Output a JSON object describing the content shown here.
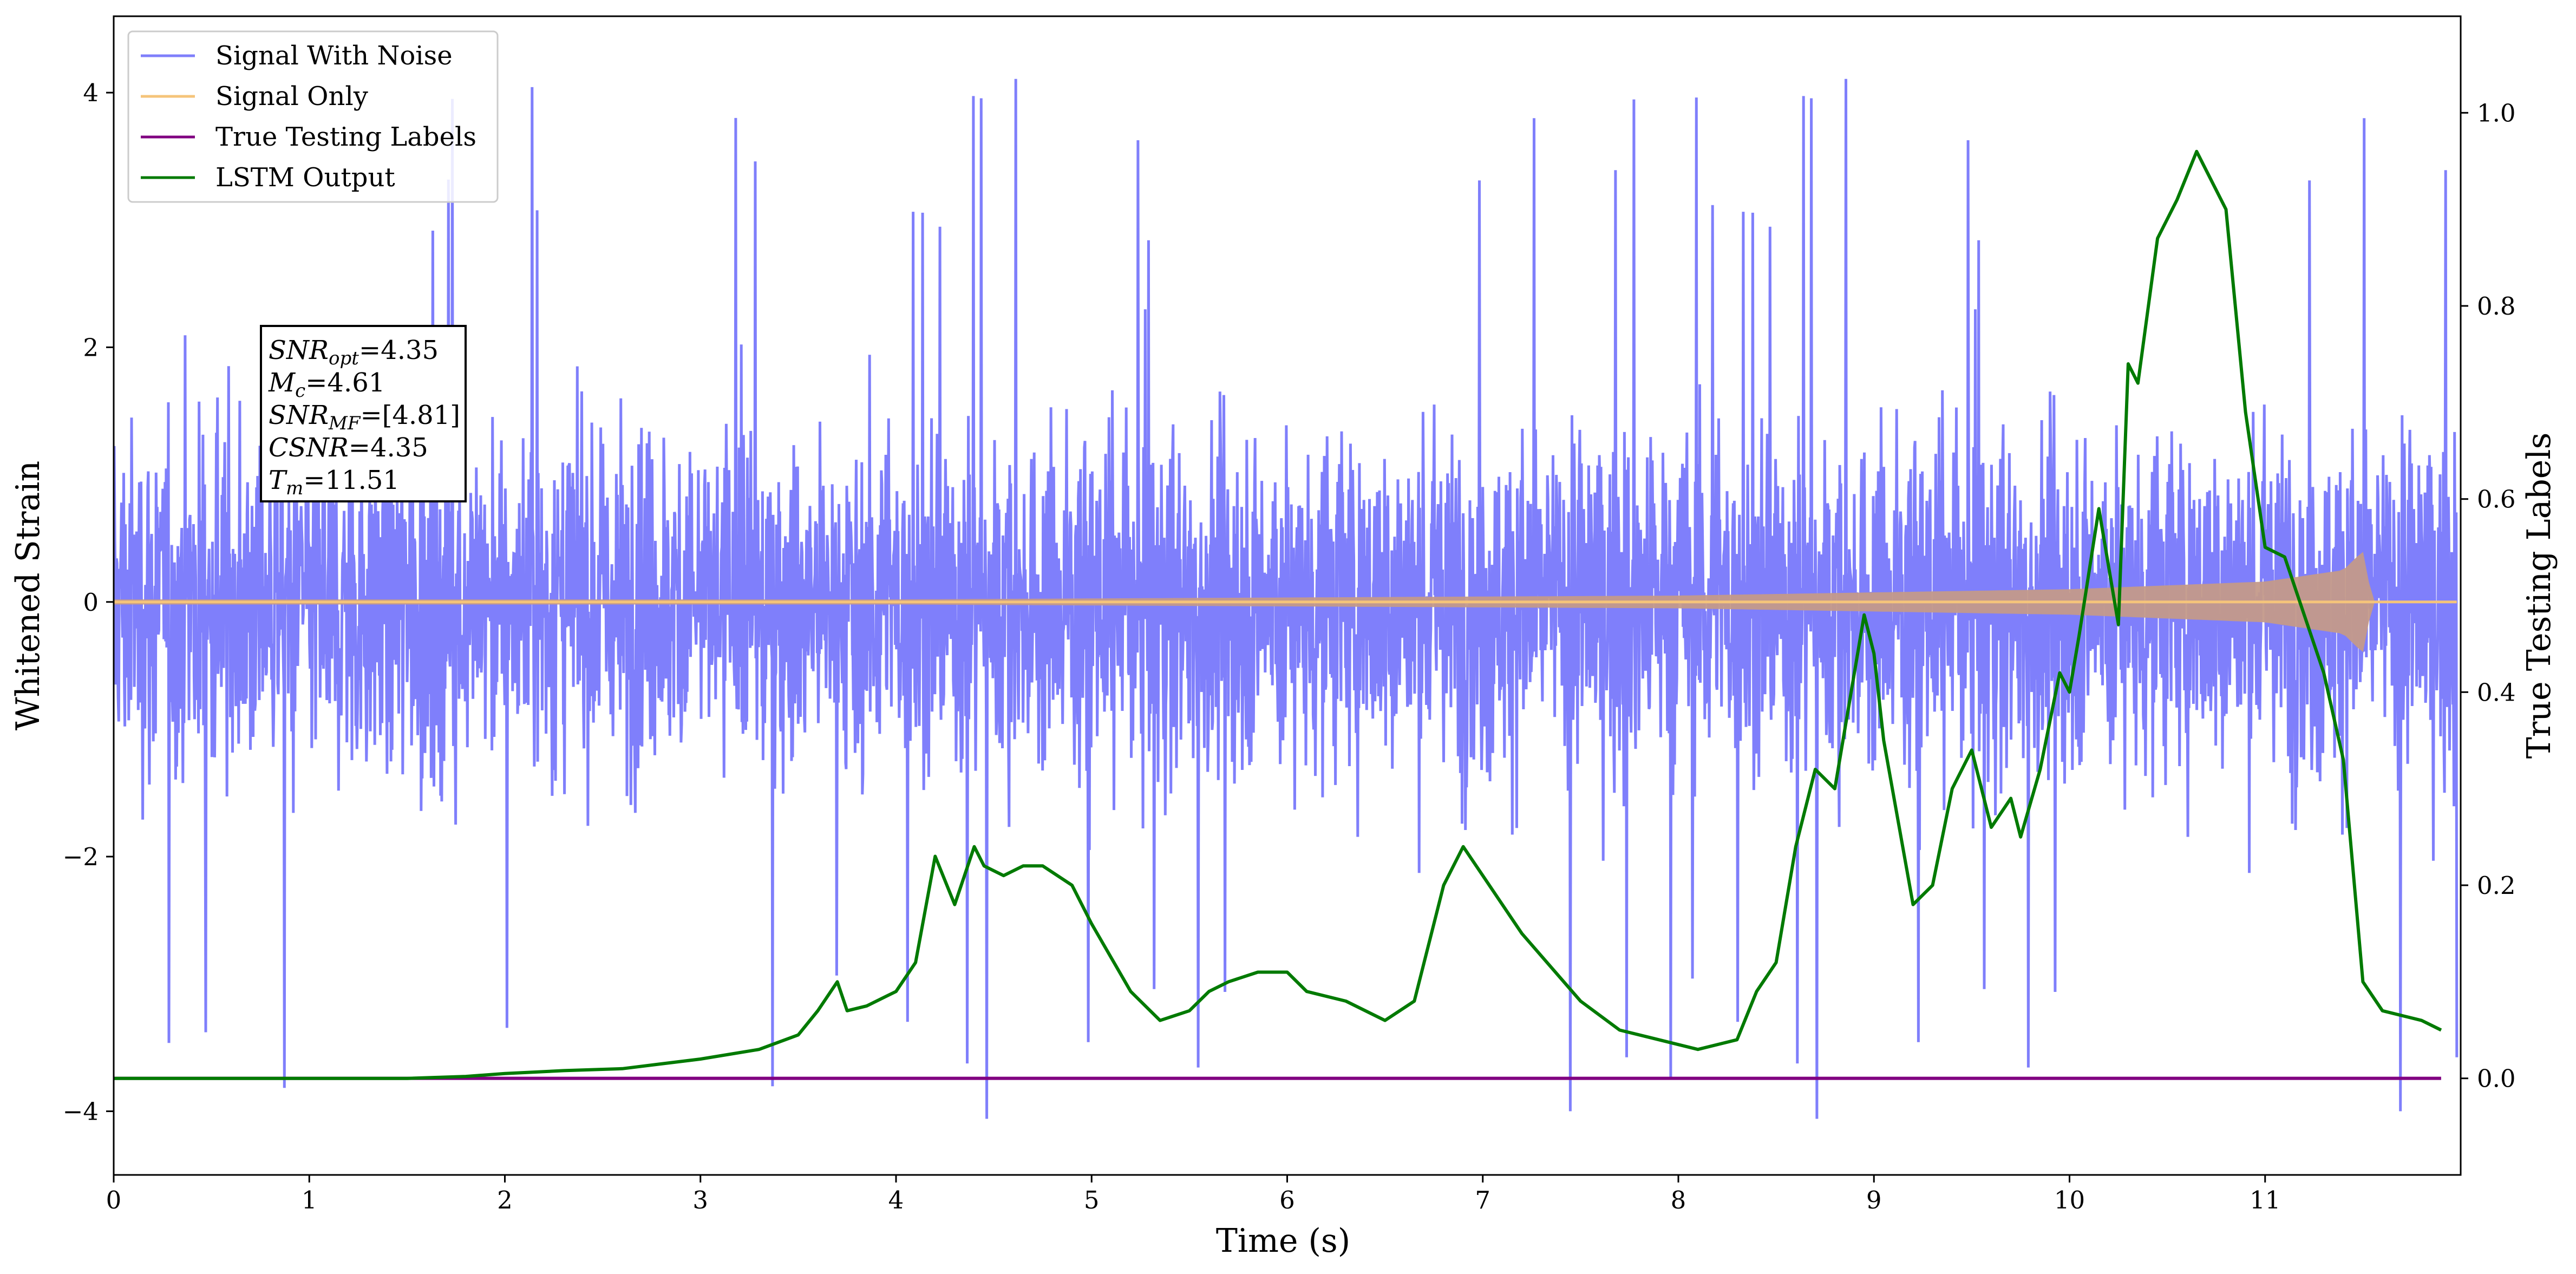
{
  "chart_data": {
    "type": "line",
    "xlabel": "Time (s)",
    "ylabel": "Whitened Strain",
    "ylabel_right": "True Testing Labels",
    "xlim": [
      0,
      12
    ],
    "ylim": [
      -4.5,
      4.6
    ],
    "ylim_right": [
      -0.1,
      1.1
    ],
    "x_ticks": [
      "0",
      "1",
      "2",
      "3",
      "4",
      "5",
      "6",
      "7",
      "8",
      "9",
      "10",
      "11"
    ],
    "y_ticks": [
      {
        "value": 4,
        "label": "4"
      },
      {
        "value": 2,
        "label": "2"
      },
      {
        "value": 0,
        "label": "0"
      },
      {
        "value": -2,
        "label": "−2"
      },
      {
        "value": -4,
        "label": "−4"
      }
    ],
    "y_right_ticks": [
      "0.0",
      "0.2",
      "0.4",
      "0.6",
      "0.8",
      "1.0"
    ],
    "grid": false,
    "legend_placement": "top-left",
    "series": [
      {
        "name": "Signal With Noise",
        "color": "#7f7ffb",
        "axis": "left",
        "description_values": {
          "typical_band": [
            -2.2,
            2.2
          ],
          "max": 4.25,
          "min": -4.1
        }
      },
      {
        "name": "Signal Only",
        "color": "#f5c47a",
        "axis": "left",
        "envelope": {
          "x": [
            0,
            4,
            8,
            10,
            11,
            11.4,
            11.5,
            11.55,
            12
          ],
          "amp": [
            0.02,
            0.02,
            0.05,
            0.1,
            0.16,
            0.25,
            0.4,
            0.0,
            0.0
          ]
        }
      },
      {
        "name": "True Testing Labels",
        "color": "#800080",
        "axis": "right",
        "x": [
          0,
          11.9
        ],
        "y": [
          0.0,
          0.0
        ]
      },
      {
        "name": "LSTM Output",
        "color": "#007a00",
        "axis": "right",
        "x": [
          0,
          0.5,
          1.0,
          1.5,
          1.8,
          2.0,
          2.3,
          2.6,
          2.8,
          3.0,
          3.3,
          3.5,
          3.6,
          3.7,
          3.75,
          3.85,
          3.95,
          4.0,
          4.1,
          4.2,
          4.3,
          4.4,
          4.45,
          4.55,
          4.65,
          4.75,
          4.9,
          5.0,
          5.2,
          5.35,
          5.5,
          5.6,
          5.7,
          5.85,
          6.0,
          6.1,
          6.3,
          6.5,
          6.65,
          6.8,
          6.9,
          7.0,
          7.2,
          7.5,
          7.7,
          7.9,
          8.1,
          8.3,
          8.4,
          8.5,
          8.6,
          8.7,
          8.8,
          8.95,
          9.0,
          9.05,
          9.2,
          9.3,
          9.4,
          9.5,
          9.6,
          9.7,
          9.75,
          9.85,
          9.95,
          10.0,
          10.05,
          10.15,
          10.25,
          10.3,
          10.35,
          10.45,
          10.55,
          10.65,
          10.8,
          10.9,
          11.0,
          11.1,
          11.2,
          11.3,
          11.4,
          11.5,
          11.6,
          11.8,
          11.9
        ],
        "y": [
          0.0,
          0.0,
          0.0,
          0.0,
          0.002,
          0.005,
          0.008,
          0.01,
          0.015,
          0.02,
          0.03,
          0.045,
          0.07,
          0.1,
          0.07,
          0.075,
          0.085,
          0.09,
          0.12,
          0.23,
          0.18,
          0.24,
          0.22,
          0.21,
          0.22,
          0.22,
          0.2,
          0.16,
          0.09,
          0.06,
          0.07,
          0.09,
          0.1,
          0.11,
          0.11,
          0.09,
          0.08,
          0.06,
          0.08,
          0.2,
          0.24,
          0.21,
          0.15,
          0.08,
          0.05,
          0.04,
          0.03,
          0.04,
          0.09,
          0.12,
          0.24,
          0.32,
          0.3,
          0.48,
          0.44,
          0.35,
          0.18,
          0.2,
          0.3,
          0.34,
          0.26,
          0.29,
          0.25,
          0.32,
          0.42,
          0.4,
          0.46,
          0.59,
          0.47,
          0.74,
          0.72,
          0.87,
          0.91,
          0.96,
          0.9,
          0.69,
          0.55,
          0.54,
          0.48,
          0.42,
          0.33,
          0.1,
          0.07,
          0.06,
          0.05
        ]
      }
    ]
  },
  "annotation_box": {
    "lines": [
      {
        "symbol": "SNR",
        "sub": "opt",
        "text": "=4.35"
      },
      {
        "symbol": "M",
        "sub": "c",
        "text": "=4.61"
      },
      {
        "symbol": "SNR",
        "sub": "MF",
        "text": "=[4.81]"
      },
      {
        "symbol": "CSNR",
        "sub": "",
        "text": "=4.35"
      },
      {
        "symbol": "T",
        "sub": "m",
        "text": "=11.51"
      }
    ]
  }
}
